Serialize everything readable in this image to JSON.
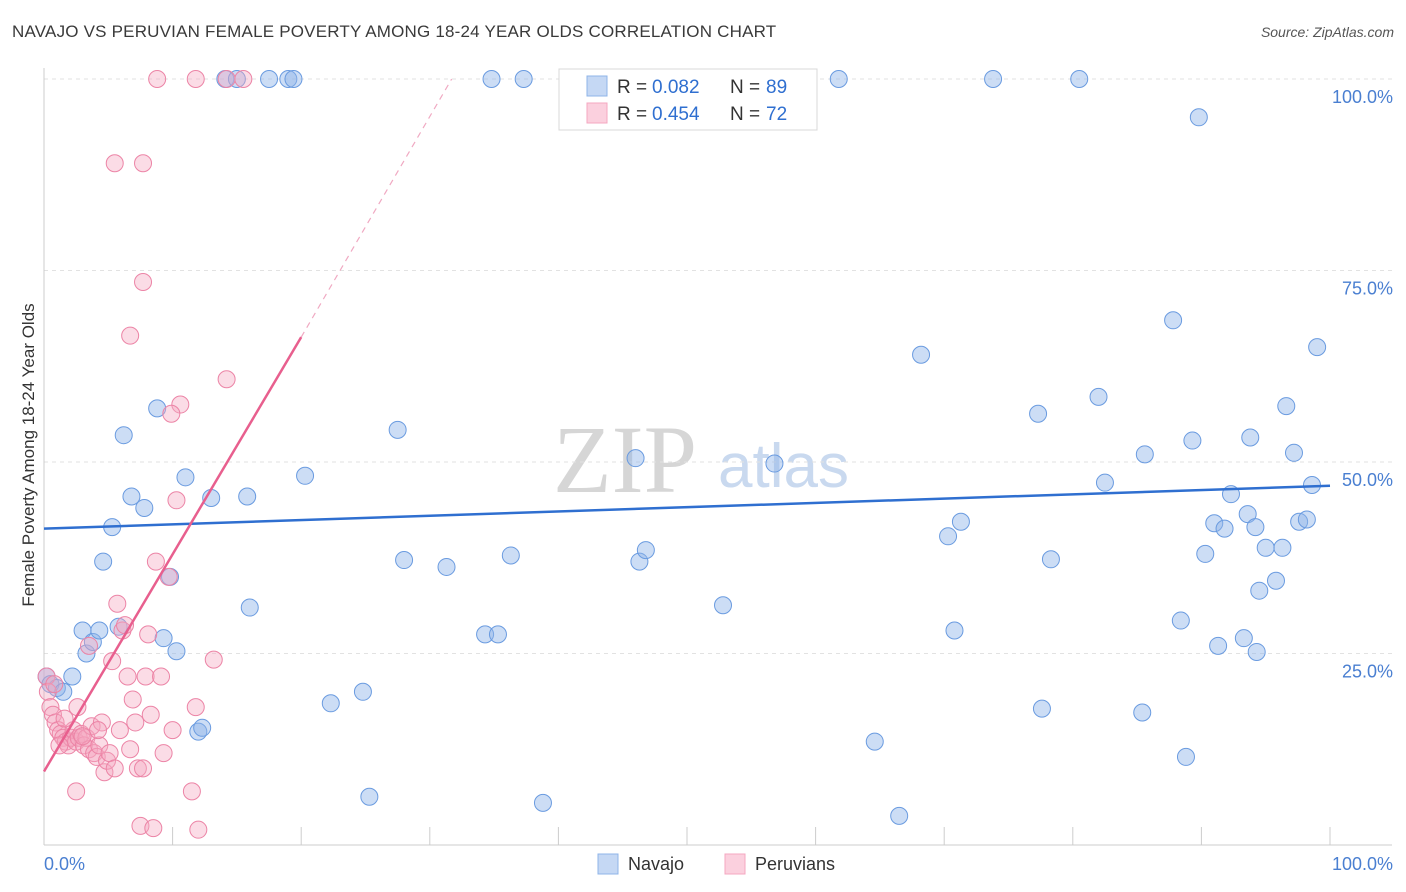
{
  "title": "NAVAJO VS PERUVIAN FEMALE POVERTY AMONG 18-24 YEAR OLDS CORRELATION CHART",
  "source": "Source: ZipAtlas.com",
  "watermark": {
    "zip": "ZIP",
    "atlas": "atlas"
  },
  "legend": {
    "r_label": "R =",
    "n_label": "N =",
    "series": [
      {
        "name": "Navajo",
        "r": "0.082",
        "n": "89",
        "color": "#8fb4e8"
      },
      {
        "name": "Peruvians",
        "r": "0.454",
        "n": "72",
        "color": "#f4a7c0"
      }
    ]
  },
  "chart_data": {
    "type": "scatter",
    "title": "NAVAJO VS PERUVIAN FEMALE POVERTY AMONG 18-24 YEAR OLDS CORRELATION CHART",
    "xlabel": "",
    "ylabel": "Female Poverty Among 18-24 Year Olds",
    "xlim": [
      0,
      100
    ],
    "ylim": [
      0,
      100
    ],
    "x_tick_labels": [
      "0.0%",
      "100.0%"
    ],
    "y_tick_labels": [
      "25.0%",
      "50.0%",
      "75.0%",
      "100.0%"
    ],
    "y_ticks": [
      25,
      50,
      75,
      100
    ],
    "grid": true,
    "legend_position": "top-center",
    "series": [
      {
        "name": "Navajo",
        "color": "#8fb4e8",
        "stroke": "#6a9be0",
        "trend": {
          "x0": 0,
          "y0": 41.3,
          "x1": 100,
          "y1": 46.9,
          "color": "#2f6fd0"
        },
        "points": [
          [
            0.2,
            22
          ],
          [
            0.5,
            21
          ],
          [
            1,
            20.5
          ],
          [
            1.5,
            20
          ],
          [
            2.2,
            22
          ],
          [
            3,
            28
          ],
          [
            3.3,
            25
          ],
          [
            3.8,
            26.5
          ],
          [
            4.3,
            28
          ],
          [
            4.6,
            37
          ],
          [
            5.3,
            41.5
          ],
          [
            5.8,
            28.5
          ],
          [
            6.2,
            53.5
          ],
          [
            6.8,
            45.5
          ],
          [
            7.8,
            44
          ],
          [
            8.8,
            57
          ],
          [
            9.3,
            27
          ],
          [
            9.8,
            35
          ],
          [
            10.3,
            25.3
          ],
          [
            11,
            48
          ],
          [
            12,
            14.8
          ],
          [
            12.3,
            15.3
          ],
          [
            13,
            45.3
          ],
          [
            14.1,
            100
          ],
          [
            15,
            100
          ],
          [
            15.8,
            45.5
          ],
          [
            16,
            31
          ],
          [
            17.5,
            100
          ],
          [
            19,
            100
          ],
          [
            19.4,
            100
          ],
          [
            20.3,
            48.2
          ],
          [
            22.3,
            18.5
          ],
          [
            24.8,
            20
          ],
          [
            25.3,
            6.3
          ],
          [
            27.5,
            54.2
          ],
          [
            28,
            37.2
          ],
          [
            31.3,
            36.3
          ],
          [
            34.3,
            27.5
          ],
          [
            34.8,
            100
          ],
          [
            35.3,
            27.5
          ],
          [
            36.3,
            37.8
          ],
          [
            37.3,
            100
          ],
          [
            38.8,
            5.5
          ],
          [
            46,
            50.5
          ],
          [
            46.3,
            37
          ],
          [
            46.8,
            38.5
          ],
          [
            52.8,
            31.3
          ],
          [
            56.8,
            49.8
          ],
          [
            61.8,
            100
          ],
          [
            64.6,
            13.5
          ],
          [
            66.5,
            3.8
          ],
          [
            68.2,
            64
          ],
          [
            70.3,
            40.3
          ],
          [
            70.8,
            28
          ],
          [
            71.3,
            42.2
          ],
          [
            73.8,
            100
          ],
          [
            77.3,
            56.3
          ],
          [
            77.6,
            17.8
          ],
          [
            78.3,
            37.3
          ],
          [
            80.5,
            100
          ],
          [
            82,
            58.5
          ],
          [
            82.5,
            47.3
          ],
          [
            85.4,
            17.3
          ],
          [
            85.6,
            51
          ],
          [
            87.8,
            68.5
          ],
          [
            88.4,
            29.3
          ],
          [
            88.8,
            11.5
          ],
          [
            89.3,
            52.8
          ],
          [
            89.8,
            95
          ],
          [
            90.3,
            38
          ],
          [
            91,
            42
          ],
          [
            91.3,
            26
          ],
          [
            91.8,
            41.3
          ],
          [
            92.3,
            45.8
          ],
          [
            93.3,
            27
          ],
          [
            93.6,
            43.2
          ],
          [
            93.8,
            53.2
          ],
          [
            94.2,
            41.5
          ],
          [
            94.3,
            25.2
          ],
          [
            94.5,
            33.2
          ],
          [
            95,
            38.8
          ],
          [
            95.8,
            34.5
          ],
          [
            96.3,
            38.8
          ],
          [
            96.6,
            57.3
          ],
          [
            97.2,
            51.2
          ],
          [
            97.6,
            42.2
          ],
          [
            98.2,
            42.5
          ],
          [
            98.6,
            47
          ],
          [
            99,
            65
          ]
        ]
      },
      {
        "name": "Peruvians",
        "color": "#f4a7c0",
        "stroke": "#ec84a6",
        "trend": {
          "x0": 0,
          "y0": 9.6,
          "x1": 20,
          "y1": 66.3,
          "color": "#e85f8e"
        },
        "trend_dashed_to": {
          "x": 31.7,
          "y": 100
        },
        "points": [
          [
            0.2,
            22
          ],
          [
            0.3,
            20
          ],
          [
            0.5,
            18
          ],
          [
            0.7,
            17
          ],
          [
            0.9,
            16
          ],
          [
            1.1,
            15
          ],
          [
            1.3,
            14.5
          ],
          [
            1.5,
            14
          ],
          [
            1.7,
            13.5
          ],
          [
            1.9,
            13
          ],
          [
            2.1,
            14
          ],
          [
            2.3,
            15
          ],
          [
            2.5,
            13.5
          ],
          [
            2.7,
            14
          ],
          [
            2.9,
            14.5
          ],
          [
            3.1,
            13
          ],
          [
            3.3,
            14
          ],
          [
            3.5,
            12.5
          ],
          [
            3.7,
            15.5
          ],
          [
            3.9,
            12
          ],
          [
            4.1,
            11.5
          ],
          [
            4.3,
            13
          ],
          [
            4.5,
            16
          ],
          [
            4.7,
            9.5
          ],
          [
            4.9,
            11
          ],
          [
            5.1,
            12
          ],
          [
            5.3,
            24
          ],
          [
            5.5,
            10
          ],
          [
            5.7,
            31.5
          ],
          [
            5.9,
            15
          ],
          [
            6.1,
            28
          ],
          [
            6.3,
            28.7
          ],
          [
            6.5,
            22
          ],
          [
            6.7,
            12.5
          ],
          [
            6.9,
            19
          ],
          [
            7.1,
            16
          ],
          [
            7.3,
            10
          ],
          [
            7.5,
            2.5
          ],
          [
            7.7,
            10
          ],
          [
            7.9,
            22
          ],
          [
            8.1,
            27.5
          ],
          [
            8.3,
            17
          ],
          [
            8.5,
            2.2
          ],
          [
            8.7,
            37
          ],
          [
            9.1,
            22
          ],
          [
            9.3,
            12
          ],
          [
            9.7,
            35
          ],
          [
            10,
            15
          ],
          [
            10.3,
            45
          ],
          [
            10.6,
            57.5
          ],
          [
            11.5,
            7
          ],
          [
            11.8,
            18
          ],
          [
            12,
            2
          ],
          [
            13.2,
            24.2
          ],
          [
            14.2,
            60.8
          ],
          [
            5.5,
            89
          ],
          [
            7.7,
            89
          ],
          [
            7.7,
            73.5
          ],
          [
            6.7,
            66.5
          ],
          [
            9.9,
            56.3
          ],
          [
            8.8,
            100
          ],
          [
            11.8,
            100
          ],
          [
            14.2,
            100
          ],
          [
            15.5,
            100
          ],
          [
            2.5,
            7
          ],
          [
            3.5,
            26
          ],
          [
            2.6,
            18
          ],
          [
            1.6,
            16.5
          ],
          [
            1.2,
            13
          ],
          [
            4.2,
            15
          ],
          [
            3.0,
            14.2
          ],
          [
            0.8,
            21
          ]
        ]
      }
    ]
  }
}
